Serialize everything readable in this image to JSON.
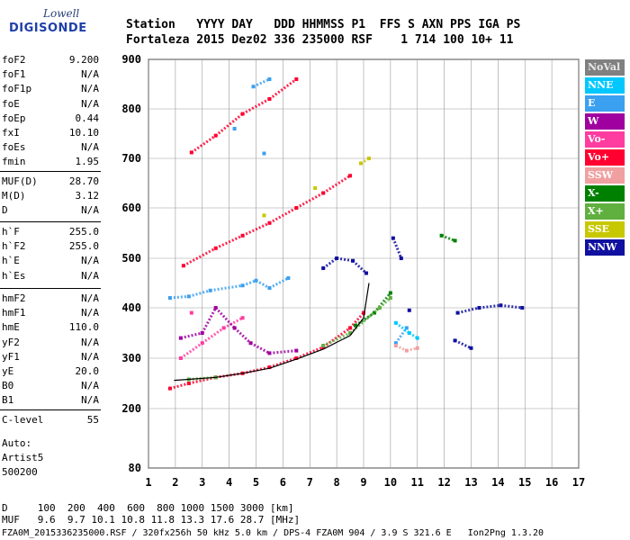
{
  "logo": {
    "line1": "Lowell",
    "line2": "DIGISONDE"
  },
  "header": {
    "line1": "Station   YYYY DAY   DDD HHMMSS P1  FFS S AXN PPS IGA PS",
    "line2": "Fortaleza 2015 Dez02 336 235000 RSF    1 714 100 10+ 11"
  },
  "params_group1": [
    {
      "name": "foF2",
      "value": "9.200"
    },
    {
      "name": "foF1",
      "value": "N/A"
    },
    {
      "name": "foF1p",
      "value": "N/A"
    },
    {
      "name": "foE",
      "value": "N/A"
    },
    {
      "name": "foEp",
      "value": "0.44"
    },
    {
      "name": "fxI",
      "value": "10.10"
    },
    {
      "name": "foEs",
      "value": "N/A"
    },
    {
      "name": "fmin",
      "value": "1.95"
    }
  ],
  "params_group2": [
    {
      "name": "MUF(D)",
      "value": "28.70"
    },
    {
      "name": "M(D)",
      "value": "3.12"
    },
    {
      "name": "D",
      "value": "N/A"
    }
  ],
  "params_group3": [
    {
      "name": "h`F",
      "value": "255.0"
    },
    {
      "name": "h`F2",
      "value": "255.0"
    },
    {
      "name": "h`E",
      "value": "N/A"
    },
    {
      "name": "h`Es",
      "value": "N/A"
    }
  ],
  "params_group4": [
    {
      "name": "hmF2",
      "value": "N/A"
    },
    {
      "name": "hmF1",
      "value": "N/A"
    },
    {
      "name": "hmE",
      "value": "110.0"
    },
    {
      "name": "yF2",
      "value": "N/A"
    },
    {
      "name": "yF1",
      "value": "N/A"
    },
    {
      "name": "yE",
      "value": "20.0"
    },
    {
      "name": "B0",
      "value": "N/A"
    },
    {
      "name": "B1",
      "value": "N/A"
    }
  ],
  "clevel": {
    "name": "C-level",
    "value": "55"
  },
  "auto": {
    "line1": "Auto:",
    "line2": "Artist5",
    "line3": "500200"
  },
  "footer": {
    "line1": "D     100  200  400  600  800 1000 1500 3000 [km]",
    "line2": "MUF   9.6  9.7 10.1 10.8 11.8 13.3 17.6 28.7 [MHz]",
    "line3": "FZA0M_2015336235000.RSF / 320fx256h 50 kHz 5.0 km / DPS-4 FZA0M 904 / 3.9 S 321.6 E   Ion2Png 1.3.20"
  },
  "legend": [
    {
      "label": "NoVal",
      "color": "#808080"
    },
    {
      "label": "NNE",
      "color": "#00c8ff"
    },
    {
      "label": "E",
      "color": "#3ca0f0"
    },
    {
      "label": "W",
      "color": "#a000a0"
    },
    {
      "label": "Vo-",
      "color": "#ff3ca0"
    },
    {
      "label": "Vo+",
      "color": "#ff0030"
    },
    {
      "label": "SSW",
      "color": "#f0a0a0"
    },
    {
      "label": "X-",
      "color": "#008000"
    },
    {
      "label": "X+",
      "color": "#60b040"
    },
    {
      "label": "SSE",
      "color": "#c8c800"
    },
    {
      "label": "NNW",
      "color": "#1010a0"
    }
  ],
  "chart_data": {
    "type": "scatter",
    "xlim": [
      1,
      17
    ],
    "ylim": [
      80,
      900
    ],
    "x_ticks": [
      "1",
      "2",
      "3",
      "4",
      "5",
      "6",
      "7",
      "8",
      "9",
      "10",
      "11",
      "12",
      "13",
      "14",
      "15",
      "16",
      "17"
    ],
    "y_ticks": [
      "80",
      "200",
      "300",
      "400",
      "500",
      "600",
      "700",
      "800",
      "900"
    ],
    "grid": true,
    "legend_position": "right",
    "series": [
      {
        "name": "Vo+",
        "color": "#ff0030",
        "points": [
          [
            1.8,
            240
          ],
          [
            2.5,
            250
          ],
          [
            3.5,
            262
          ],
          [
            4.5,
            270
          ],
          [
            5.5,
            282
          ],
          [
            6.5,
            300
          ],
          [
            7.5,
            322
          ],
          [
            8.5,
            360
          ],
          [
            9.0,
            390
          ],
          [
            2.3,
            485
          ],
          [
            3.5,
            520
          ],
          [
            4.5,
            545
          ],
          [
            5.5,
            570
          ],
          [
            6.5,
            600
          ],
          [
            7.5,
            630
          ],
          [
            8.5,
            665
          ],
          [
            2.6,
            712
          ],
          [
            3.5,
            746
          ],
          [
            4.5,
            790
          ],
          [
            5.5,
            820
          ],
          [
            6.5,
            860
          ]
        ]
      },
      {
        "name": "Vo-",
        "color": "#ff3ca0",
        "points": [
          [
            2.2,
            300
          ],
          [
            3.0,
            330
          ],
          [
            3.8,
            360
          ],
          [
            4.5,
            380
          ],
          [
            2.6,
            390
          ]
        ]
      },
      {
        "name": "W",
        "color": "#a000a0",
        "points": [
          [
            2.2,
            340
          ],
          [
            3.0,
            350
          ],
          [
            3.5,
            400
          ],
          [
            4.2,
            360
          ],
          [
            4.8,
            330
          ],
          [
            5.5,
            310
          ],
          [
            6.5,
            315
          ]
        ]
      },
      {
        "name": "E",
        "color": "#3ca0f0",
        "points": [
          [
            1.8,
            420
          ],
          [
            2.5,
            423
          ],
          [
            3.3,
            435
          ],
          [
            4.5,
            445
          ],
          [
            5.0,
            455
          ],
          [
            5.5,
            440
          ],
          [
            6.2,
            460
          ],
          [
            4.2,
            760
          ],
          [
            4.9,
            845
          ],
          [
            5.5,
            860
          ],
          [
            5.3,
            710
          ],
          [
            10.2,
            330
          ],
          [
            10.6,
            360
          ]
        ]
      },
      {
        "name": "NNE",
        "color": "#00c8ff",
        "points": [
          [
            10.2,
            370
          ],
          [
            10.7,
            350
          ],
          [
            11.0,
            340
          ]
        ]
      },
      {
        "name": "NNW",
        "color": "#1010a0",
        "points": [
          [
            7.5,
            480
          ],
          [
            8.0,
            500
          ],
          [
            8.6,
            495
          ],
          [
            9.1,
            470
          ],
          [
            10.1,
            540
          ],
          [
            10.4,
            500
          ],
          [
            12.5,
            390
          ],
          [
            13.3,
            400
          ],
          [
            14.1,
            405
          ],
          [
            14.9,
            400
          ],
          [
            12.4,
            335
          ],
          [
            13.0,
            320
          ],
          [
            10.7,
            395
          ]
        ]
      },
      {
        "name": "SSW",
        "color": "#f0a0a0",
        "points": [
          [
            10.2,
            325
          ],
          [
            10.6,
            315
          ],
          [
            11.0,
            320
          ]
        ]
      },
      {
        "name": "X-",
        "color": "#008000",
        "points": [
          [
            8.7,
            365
          ],
          [
            9.4,
            390
          ],
          [
            10.0,
            430
          ],
          [
            11.9,
            545
          ],
          [
            12.4,
            535
          ]
        ]
      },
      {
        "name": "X+",
        "color": "#60b040",
        "points": [
          [
            7.5,
            325
          ],
          [
            8.5,
            350
          ],
          [
            9.6,
            400
          ],
          [
            10.0,
            420
          ],
          [
            2.5,
            258
          ],
          [
            3.5,
            262
          ]
        ]
      },
      {
        "name": "SSE",
        "color": "#c8c800",
        "points": [
          [
            8.9,
            690
          ],
          [
            9.2,
            700
          ],
          [
            5.3,
            585
          ],
          [
            7.2,
            640
          ]
        ]
      }
    ],
    "trace": {
      "color": "#000000",
      "points": [
        [
          1.95,
          256
        ],
        [
          2.5,
          258
        ],
        [
          3.5,
          262
        ],
        [
          4.5,
          270
        ],
        [
          5.5,
          280
        ],
        [
          6.5,
          298
        ],
        [
          7.5,
          318
        ],
        [
          8.5,
          345
        ],
        [
          9.0,
          380
        ],
        [
          9.2,
          450
        ]
      ]
    }
  }
}
